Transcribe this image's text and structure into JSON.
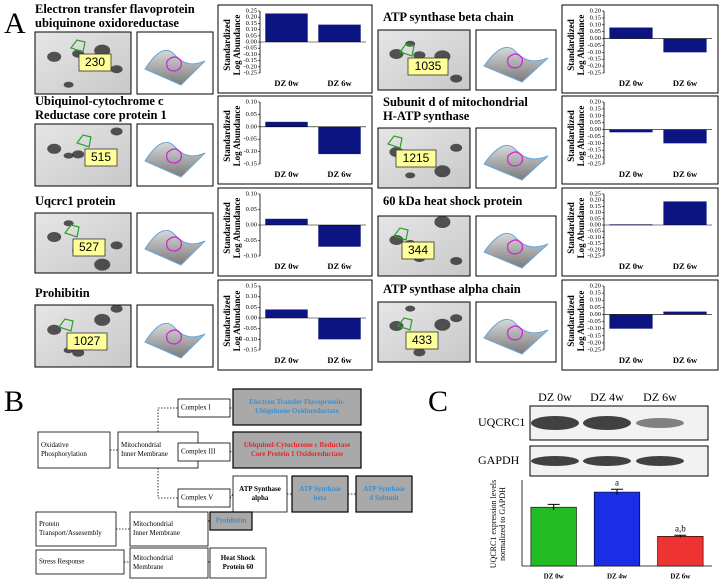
{
  "panel_labels": [
    "A",
    "B",
    "C"
  ],
  "proteins": [
    {
      "name": [
        "Electron transfer flavoprotein",
        "ubiquinone oxidoreductase"
      ],
      "spot": "230"
    },
    {
      "name": [
        "ATP synthase beta chain"
      ],
      "spot": "1035"
    },
    {
      "name": [
        "Ubiquinol-cytochrome c",
        "Reductase core protein 1"
      ],
      "spot": "515"
    },
    {
      "name": [
        "Subunit d of mitochondrial",
        "H-ATP synthase"
      ],
      "spot": "1215"
    },
    {
      "name": [
        "Uqcrc1 protein"
      ],
      "spot": "527"
    },
    {
      "name": [
        "60 kDa heat shock protein"
      ],
      "spot": "344"
    },
    {
      "name": [
        "Prohibitin"
      ],
      "spot": "1027"
    },
    {
      "name": [
        "ATP synthase alpha chain"
      ],
      "spot": "433"
    }
  ],
  "chart_data": [
    {
      "type": "bar",
      "y_label": [
        "Standardized",
        "Log Abundance"
      ],
      "categories": [
        "DZ 0w",
        "DZ 6w"
      ],
      "values": [
        0.23,
        0.14
      ],
      "color": "#0b1480",
      "ylim": [
        -0.25,
        0.25
      ],
      "yticks": [
        0.25,
        {
          "value": 0.2,
          "label": "0.20"
        },
        0.15,
        {
          "value": 0.1,
          "label": "0.10"
        },
        0.05,
        {
          "value": 0,
          "label": "0.00"
        },
        -0.05,
        {
          "value": -0.1,
          "label": "-0.10"
        },
        -0.15,
        {
          "value": -0.2,
          "label": "-0.20"
        },
        -0.25
      ]
    },
    {
      "type": "bar",
      "y_label": [
        "Standardized",
        "Log Abundance"
      ],
      "categories": [
        "DZ 0w",
        "DZ 6w"
      ],
      "values": [
        0.08,
        -0.1
      ],
      "color": "#0b1480",
      "ylim": [
        -0.25,
        0.2
      ],
      "yticks": [
        {
          "value": 0.2,
          "label": "0.20"
        },
        0.15,
        {
          "value": 0.1,
          "label": "0.10"
        },
        0.05,
        {
          "value": 0,
          "label": "0.00"
        },
        -0.05,
        {
          "value": -0.1,
          "label": "-0.10"
        },
        -0.15,
        {
          "value": -0.2,
          "label": "-0.20"
        },
        -0.25
      ]
    },
    {
      "type": "bar",
      "y_label": [
        "Standardized",
        "Log Abundance"
      ],
      "categories": [
        "DZ 0w",
        "DZ 6w"
      ],
      "values": [
        0.02,
        -0.11
      ],
      "color": "#0b1480",
      "ylim": [
        -0.15,
        0.1
      ],
      "yticks": [
        {
          "value": 0.1,
          "label": "0.10"
        },
        0.05,
        {
          "value": 0,
          "label": "0.00"
        },
        -0.05,
        {
          "value": -0.1,
          "label": "-0.10"
        },
        -0.15
      ]
    },
    {
      "type": "bar",
      "y_label": [
        "Standardized",
        "Log Abundance"
      ],
      "categories": [
        "DZ 0w",
        "DZ 6w"
      ],
      "values": [
        -0.02,
        -0.1
      ],
      "color": "#0b1480",
      "ylim": [
        -0.25,
        0.2
      ],
      "yticks": [
        {
          "value": 0.2,
          "label": "0.20"
        },
        0.15,
        {
          "value": 0.1,
          "label": "0.10"
        },
        0.05,
        {
          "value": 0,
          "label": "0.00"
        },
        -0.05,
        {
          "value": -0.1,
          "label": "-0.10"
        },
        -0.15,
        {
          "value": -0.2,
          "label": "-0.20"
        },
        -0.25
      ]
    },
    {
      "type": "bar",
      "y_label": [
        "Standardized",
        "Log Abundance"
      ],
      "categories": [
        "DZ 0w",
        "DZ 6w"
      ],
      "values": [
        0.02,
        -0.07
      ],
      "color": "#0b1480",
      "ylim": [
        -0.1,
        0.1
      ],
      "yticks": [
        {
          "value": 0.1,
          "label": "0.10"
        },
        0.05,
        {
          "value": 0,
          "label": "0.00"
        },
        -0.05,
        {
          "value": -0.1,
          "label": "-0.10"
        }
      ]
    },
    {
      "type": "bar",
      "y_label": [
        "Standardized",
        "Log Abundance"
      ],
      "categories": [
        "DZ 0w",
        "DZ 6w"
      ],
      "values": [
        0.005,
        0.19
      ],
      "color": "#0b1480",
      "ylim": [
        -0.25,
        0.25
      ],
      "yticks": [
        0.25,
        {
          "value": 0.2,
          "label": "0.20"
        },
        0.15,
        {
          "value": 0.1,
          "label": "0.10"
        },
        0.05,
        {
          "value": 0,
          "label": "0.00"
        },
        -0.05,
        {
          "value": -0.1,
          "label": "-0.10"
        },
        -0.15,
        {
          "value": -0.2,
          "label": "-0.20"
        },
        -0.25
      ]
    },
    {
      "type": "bar",
      "y_label": [
        "Standardized",
        "Log Abundance"
      ],
      "categories": [
        "DZ 0w",
        "DZ 6w"
      ],
      "values": [
        0.04,
        -0.1
      ],
      "color": "#0b1480",
      "ylim": [
        -0.15,
        0.15
      ],
      "yticks": [
        0.15,
        {
          "value": 0.1,
          "label": "0.10"
        },
        0.05,
        {
          "value": 0,
          "label": "0.00"
        },
        -0.05,
        {
          "value": -0.1,
          "label": "-0.10"
        },
        -0.15
      ]
    },
    {
      "type": "bar",
      "y_label": [
        "Standardized",
        "Log Abundance"
      ],
      "categories": [
        "DZ 0w",
        "DZ 6w"
      ],
      "values": [
        -0.1,
        0.02
      ],
      "color": "#0b1480",
      "ylim": [
        -0.25,
        0.2
      ],
      "yticks": [
        {
          "value": 0.2,
          "label": "0.20"
        },
        0.15,
        {
          "value": 0.1,
          "label": "0.10"
        },
        0.05,
        {
          "value": 0,
          "label": "0.00"
        },
        -0.05,
        {
          "value": -0.1,
          "label": "-0.10"
        },
        -0.15,
        {
          "value": -0.2,
          "label": "-0.20"
        },
        -0.25
      ]
    },
    {
      "type": "errorbar",
      "y_label": [
        "UQCRC1 expression levels",
        "normalized to GAPDH"
      ],
      "categories": [
        "DZ 0w",
        "DZ 4w",
        "DZ 6w"
      ],
      "values": [
        1.05,
        1.32,
        0.53
      ],
      "errors": [
        0.05,
        0.05,
        0.02
      ],
      "colors": [
        "#22bb22",
        "#1a2ee6",
        "#ee3333"
      ],
      "ylim": [
        0,
        1.5
      ],
      "annotations": {
        "DZ 4w": "a",
        "DZ 6w": "a,b"
      }
    }
  ],
  "blot": {
    "lanes": [
      "DZ 0w",
      "DZ 4w",
      "DZ 6w"
    ],
    "rows": [
      "UQCRC1",
      "GAPDH"
    ]
  },
  "diagram": {
    "nodes": [
      {
        "label": [
          "Oxidative",
          "Phosphorylation"
        ]
      },
      {
        "label": [
          "Mitochondrial",
          "Inner Membrane"
        ]
      },
      {
        "label": [
          "Complex I"
        ]
      },
      {
        "label": [
          "Complex III"
        ]
      },
      {
        "label": [
          "Complex V"
        ]
      },
      {
        "label": [
          "Electron Transfer Flavoprotein-",
          "Ubiquinone Oxidoreductase"
        ],
        "color": "#3a8fd0"
      },
      {
        "label": [
          "Ubiquinol-Cytochrome c Reductase",
          "Core Protein 1 Oxidoreductase"
        ],
        "color": "#e8262a"
      },
      {
        "label": [
          "ATP Synthase",
          "alpha"
        ]
      },
      {
        "label": [
          "ATP Synthase",
          "beta"
        ],
        "color": "#3a8fd0"
      },
      {
        "label": [
          "ATP Synthase",
          "d Subunit"
        ],
        "color": "#3a8fd0"
      },
      {
        "label": [
          "Protein",
          "Transport/Assesembly"
        ]
      },
      {
        "label": [
          "Mitochondrial",
          "Inner Membrane"
        ]
      },
      {
        "label": [
          "Prohibitin"
        ],
        "color": "#3a8fd0"
      },
      {
        "label": [
          "Stress Response"
        ]
      },
      {
        "label": [
          "Mitochondrial",
          "Membrane"
        ]
      },
      {
        "label": [
          "Heat Shock",
          "Protein 60"
        ]
      }
    ]
  }
}
